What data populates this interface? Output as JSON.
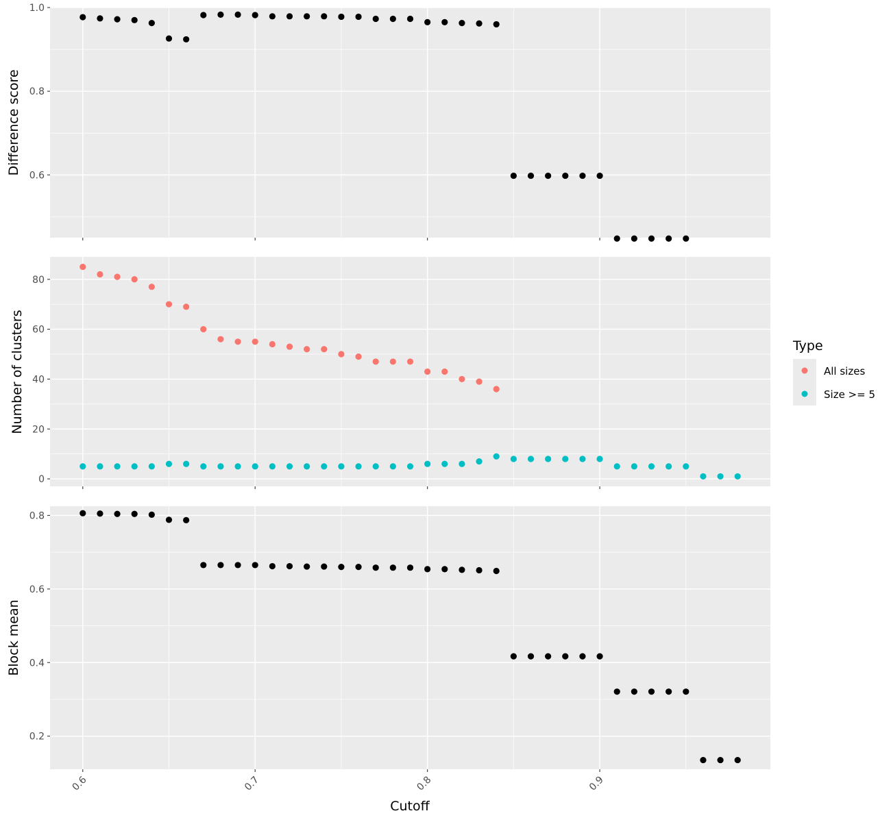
{
  "chart_data": [
    {
      "type": "scatter",
      "ylabel": "Difference score",
      "ylim": [
        0.45,
        1.0
      ],
      "y_ticks": [
        0.6,
        0.8,
        1.0
      ],
      "y_tick_labels": [
        "0.6",
        "0.8",
        "1.0"
      ],
      "series": [
        {
          "color": "#000000",
          "points": [
            [
              0.6,
              0.977
            ],
            [
              0.61,
              0.974
            ],
            [
              0.62,
              0.972
            ],
            [
              0.63,
              0.97
            ],
            [
              0.64,
              0.963
            ],
            [
              0.65,
              0.926
            ],
            [
              0.66,
              0.924
            ],
            [
              0.67,
              0.982
            ],
            [
              0.68,
              0.983
            ],
            [
              0.69,
              0.983
            ],
            [
              0.7,
              0.982
            ],
            [
              0.71,
              0.979
            ],
            [
              0.72,
              0.979
            ],
            [
              0.73,
              0.979
            ],
            [
              0.74,
              0.979
            ],
            [
              0.75,
              0.978
            ],
            [
              0.76,
              0.978
            ],
            [
              0.77,
              0.973
            ],
            [
              0.78,
              0.973
            ],
            [
              0.79,
              0.973
            ],
            [
              0.8,
              0.965
            ],
            [
              0.81,
              0.965
            ],
            [
              0.82,
              0.963
            ],
            [
              0.83,
              0.962
            ],
            [
              0.84,
              0.96
            ],
            [
              0.85,
              0.598
            ],
            [
              0.86,
              0.598
            ],
            [
              0.87,
              0.598
            ],
            [
              0.88,
              0.598
            ],
            [
              0.89,
              0.598
            ],
            [
              0.9,
              0.598
            ],
            [
              0.91,
              0.448
            ],
            [
              0.92,
              0.448
            ],
            [
              0.93,
              0.448
            ],
            [
              0.94,
              0.448
            ],
            [
              0.95,
              0.448
            ]
          ]
        }
      ]
    },
    {
      "type": "scatter",
      "ylabel": "Number of clusters",
      "ylim": [
        -3,
        89
      ],
      "y_ticks": [
        0,
        20,
        40,
        60,
        80
      ],
      "y_tick_labels": [
        "0",
        "20",
        "40",
        "60",
        "80"
      ],
      "legend": {
        "title": "Type",
        "position": "right"
      },
      "series": [
        {
          "name": "All sizes",
          "color": "#F8766D",
          "points": [
            [
              0.6,
              85
            ],
            [
              0.61,
              82
            ],
            [
              0.62,
              81
            ],
            [
              0.63,
              80
            ],
            [
              0.64,
              77
            ],
            [
              0.65,
              70
            ],
            [
              0.66,
              69
            ],
            [
              0.67,
              60
            ],
            [
              0.68,
              56
            ],
            [
              0.69,
              55
            ],
            [
              0.7,
              55
            ],
            [
              0.71,
              54
            ],
            [
              0.72,
              53
            ],
            [
              0.73,
              52
            ],
            [
              0.74,
              52
            ],
            [
              0.75,
              50
            ],
            [
              0.76,
              49
            ],
            [
              0.77,
              47
            ],
            [
              0.78,
              47
            ],
            [
              0.79,
              47
            ],
            [
              0.8,
              43
            ],
            [
              0.81,
              43
            ],
            [
              0.82,
              40
            ],
            [
              0.83,
              39
            ],
            [
              0.84,
              36
            ]
          ]
        },
        {
          "name": "Size >= 5",
          "color": "#00BFC4",
          "points": [
            [
              0.6,
              5
            ],
            [
              0.61,
              5
            ],
            [
              0.62,
              5
            ],
            [
              0.63,
              5
            ],
            [
              0.64,
              5
            ],
            [
              0.65,
              6
            ],
            [
              0.66,
              6
            ],
            [
              0.67,
              5
            ],
            [
              0.68,
              5
            ],
            [
              0.69,
              5
            ],
            [
              0.7,
              5
            ],
            [
              0.71,
              5
            ],
            [
              0.72,
              5
            ],
            [
              0.73,
              5
            ],
            [
              0.74,
              5
            ],
            [
              0.75,
              5
            ],
            [
              0.76,
              5
            ],
            [
              0.77,
              5
            ],
            [
              0.78,
              5
            ],
            [
              0.79,
              5
            ],
            [
              0.8,
              6
            ],
            [
              0.81,
              6
            ],
            [
              0.82,
              6
            ],
            [
              0.83,
              7
            ],
            [
              0.84,
              9
            ],
            [
              0.85,
              8
            ],
            [
              0.86,
              8
            ],
            [
              0.87,
              8
            ],
            [
              0.88,
              8
            ],
            [
              0.89,
              8
            ],
            [
              0.9,
              8
            ],
            [
              0.91,
              5
            ],
            [
              0.92,
              5
            ],
            [
              0.93,
              5
            ],
            [
              0.94,
              5
            ],
            [
              0.95,
              5
            ],
            [
              0.96,
              1
            ],
            [
              0.97,
              1
            ],
            [
              0.98,
              1
            ]
          ]
        }
      ]
    },
    {
      "type": "scatter",
      "ylabel": "Block mean",
      "xlabel": "Cutoff",
      "ylim": [
        0.11,
        0.825
      ],
      "y_ticks": [
        0.2,
        0.4,
        0.6,
        0.8
      ],
      "y_tick_labels": [
        "0.2",
        "0.4",
        "0.6",
        "0.8"
      ],
      "series": [
        {
          "color": "#000000",
          "points": [
            [
              0.6,
              0.806
            ],
            [
              0.61,
              0.805
            ],
            [
              0.62,
              0.804
            ],
            [
              0.63,
              0.804
            ],
            [
              0.64,
              0.802
            ],
            [
              0.65,
              0.788
            ],
            [
              0.66,
              0.787
            ],
            [
              0.67,
              0.665
            ],
            [
              0.68,
              0.665
            ],
            [
              0.69,
              0.665
            ],
            [
              0.7,
              0.665
            ],
            [
              0.71,
              0.662
            ],
            [
              0.72,
              0.662
            ],
            [
              0.73,
              0.661
            ],
            [
              0.74,
              0.661
            ],
            [
              0.75,
              0.66
            ],
            [
              0.76,
              0.66
            ],
            [
              0.77,
              0.658
            ],
            [
              0.78,
              0.658
            ],
            [
              0.79,
              0.658
            ],
            [
              0.8,
              0.654
            ],
            [
              0.81,
              0.654
            ],
            [
              0.82,
              0.652
            ],
            [
              0.83,
              0.651
            ],
            [
              0.84,
              0.649
            ],
            [
              0.85,
              0.417
            ],
            [
              0.86,
              0.417
            ],
            [
              0.87,
              0.417
            ],
            [
              0.88,
              0.417
            ],
            [
              0.89,
              0.417
            ],
            [
              0.9,
              0.417
            ],
            [
              0.91,
              0.321
            ],
            [
              0.92,
              0.321
            ],
            [
              0.93,
              0.321
            ],
            [
              0.94,
              0.321
            ],
            [
              0.95,
              0.321
            ],
            [
              0.96,
              0.135
            ],
            [
              0.97,
              0.135
            ],
            [
              0.98,
              0.135
            ]
          ]
        }
      ]
    }
  ],
  "x_axis": {
    "label": "Cutoff",
    "xlim": [
      0.581,
      0.999
    ],
    "ticks": [
      0.6,
      0.7,
      0.8,
      0.9
    ],
    "tick_labels": [
      "0.6",
      "0.7",
      "0.8",
      "0.9"
    ]
  }
}
